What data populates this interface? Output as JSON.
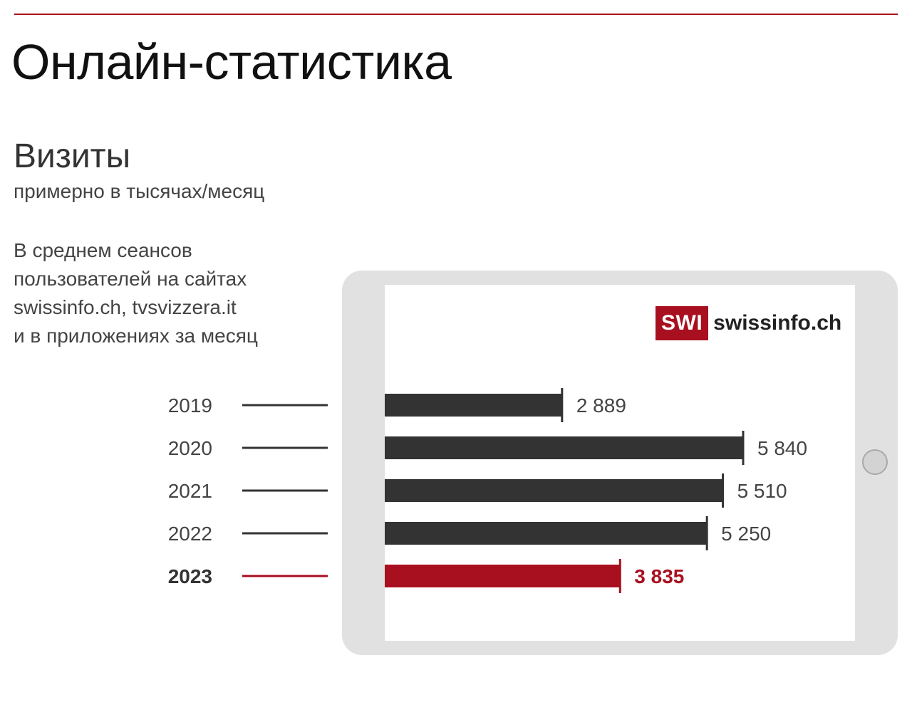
{
  "header": {
    "title": "Онлайн-статистика"
  },
  "chart": {
    "title": "Визиты",
    "subtitle": "примерно в тысячах/месяц",
    "description": [
      "В среднем сеансов",
      "пользователей на сайтах",
      "swissinfo.ch, tvsvizzera.it",
      "и в приложениях за месяц"
    ]
  },
  "logo": {
    "mark": "SWI",
    "text": "swissinfo.ch"
  },
  "colors": {
    "accent": "#a8101f",
    "bar": "#333333",
    "tablet": "#e1e1e1"
  },
  "chart_data": {
    "type": "bar",
    "orientation": "horizontal",
    "categories": [
      "2019",
      "2020",
      "2021",
      "2022",
      "2023"
    ],
    "values": [
      2889,
      5840,
      5510,
      5250,
      3835
    ],
    "value_labels": [
      "2 889",
      "5 840",
      "5 510",
      "5 250",
      "3 835"
    ],
    "highlight": "2023",
    "title": "Визиты",
    "subtitle": "примерно в тысячах/месяц",
    "xlim": [
      0,
      5840
    ],
    "grid": false,
    "legend": "none"
  }
}
